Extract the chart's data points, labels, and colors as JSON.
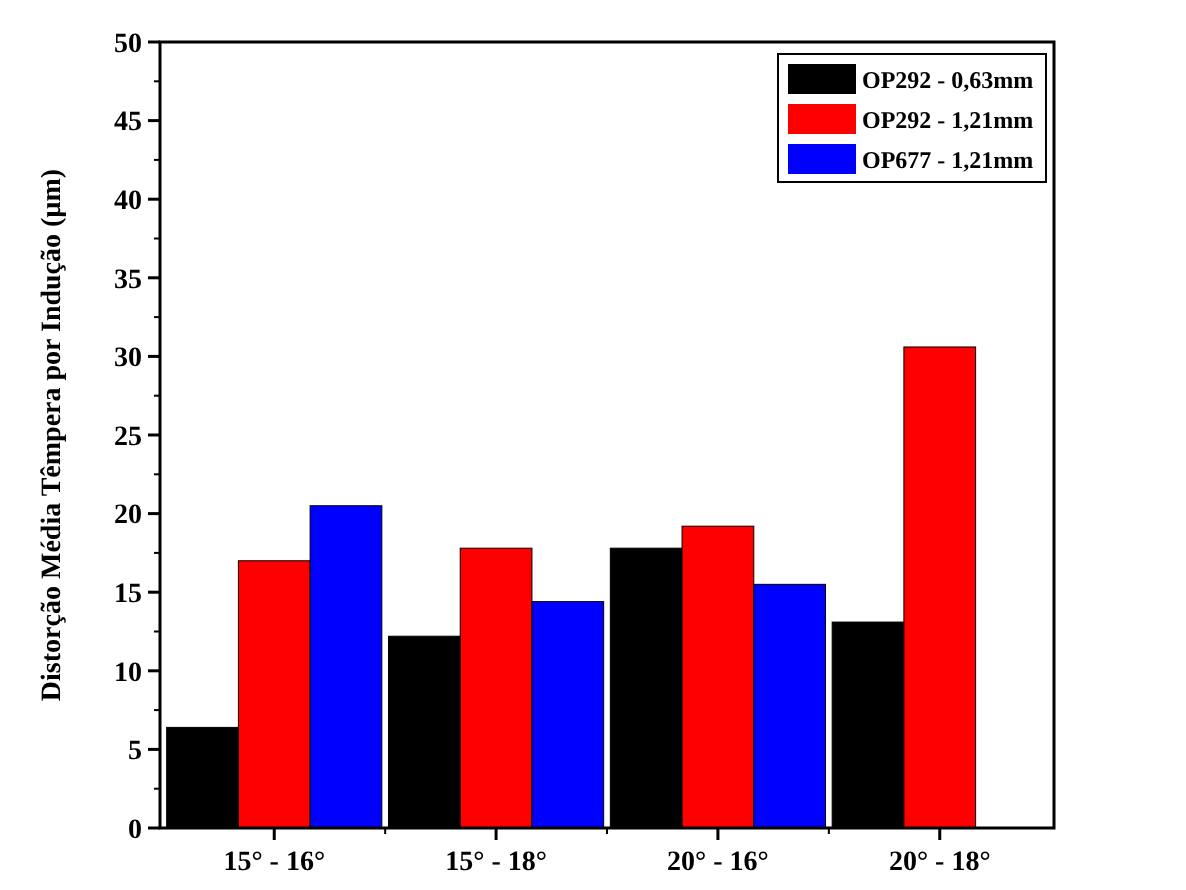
{
  "chart_data": {
    "type": "bar",
    "ylabel": "Distorção Média Têmpera por Indução (µm)",
    "categories": [
      "15° - 16°",
      "15° - 18°",
      "20° - 16°",
      "20° - 18°"
    ],
    "series": [
      {
        "name": "OP292 - 0,63mm",
        "color": "#000000",
        "values": [
          6.4,
          12.2,
          17.8,
          13.1
        ]
      },
      {
        "name": "OP292 - 1,21mm",
        "color": "#ff0000",
        "values": [
          17.0,
          17.8,
          19.2,
          30.6
        ]
      },
      {
        "name": "OP677 - 1,21mm",
        "color": "#0000ff",
        "values": [
          20.5,
          14.4,
          15.5,
          null
        ]
      }
    ],
    "ylim": [
      0,
      50
    ],
    "yticks": [
      0,
      5,
      10,
      15,
      20,
      25,
      30,
      35,
      40,
      45,
      50
    ],
    "grid": false,
    "legend": "top right"
  }
}
